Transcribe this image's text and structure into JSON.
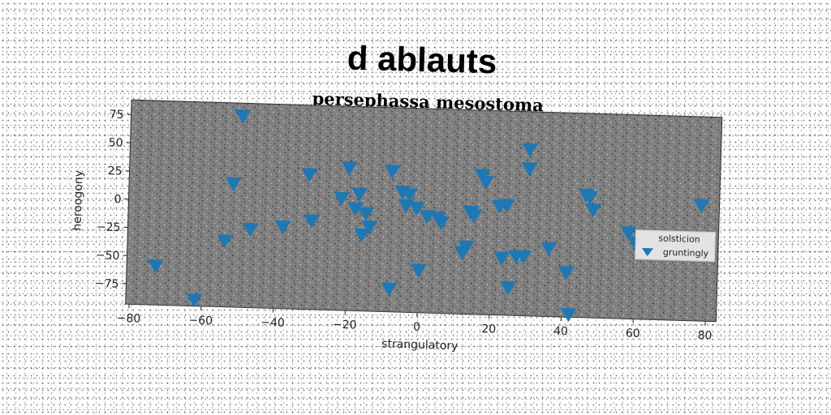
{
  "chart_data": {
    "type": "scatter",
    "title": "d ablauts",
    "subtitle": "persephassa mesostoma",
    "xlabel": "strangulatory",
    "ylabel": "heroogony",
    "xlim": [
      -81,
      83
    ],
    "ylim": [
      -93,
      88
    ],
    "xticks": [
      -80,
      -60,
      -40,
      -20,
      0,
      20,
      40,
      60,
      80
    ],
    "yticks": [
      -75,
      -50,
      -25,
      0,
      25,
      50,
      75
    ],
    "grid": false,
    "legend_position": "right",
    "legend": [
      {
        "label": "solsticion",
        "marker": "none"
      },
      {
        "label": "gruntingly",
        "marker": "triangle-down"
      }
    ],
    "series": [
      {
        "name": "gruntingly",
        "marker": "triangle-down",
        "color": "#1f77b4",
        "points": [
          [
            -50,
            77
          ],
          [
            -73,
            -58
          ],
          [
            -62,
            -87
          ],
          [
            -52,
            17
          ],
          [
            -54,
            -34
          ],
          [
            -47,
            -23
          ],
          [
            -38,
            -20
          ],
          [
            -31,
            27
          ],
          [
            -30,
            -14
          ],
          [
            -20,
            34
          ],
          [
            -22,
            7
          ],
          [
            -17,
            11
          ],
          [
            -18,
            -2
          ],
          [
            -15,
            -6
          ],
          [
            -14,
            -18
          ],
          [
            -16,
            -25
          ],
          [
            -8,
            32
          ],
          [
            -5,
            14
          ],
          [
            -3,
            12
          ],
          [
            -4,
            2
          ],
          [
            -1,
            0
          ],
          [
            2,
            -7
          ],
          [
            5,
            -8
          ],
          [
            6,
            -12
          ],
          [
            -8,
            -72
          ],
          [
            0,
            -55
          ],
          [
            12,
            -38
          ],
          [
            13,
            -33
          ],
          [
            14,
            -2
          ],
          [
            15,
            -5
          ],
          [
            17,
            31
          ],
          [
            18,
            25
          ],
          [
            22,
            4
          ],
          [
            24,
            5
          ],
          [
            23,
            -42
          ],
          [
            27,
            -40
          ],
          [
            29,
            -40
          ],
          [
            25,
            -68
          ],
          [
            30,
            55
          ],
          [
            30,
            38
          ],
          [
            36,
            -32
          ],
          [
            41,
            -53
          ],
          [
            42,
            -90
          ],
          [
            46,
            16
          ],
          [
            47,
            14
          ],
          [
            48,
            3
          ],
          [
            58,
            -16
          ],
          [
            60,
            -25
          ],
          [
            78,
            10
          ]
        ]
      }
    ],
    "colors": {
      "plot_background": "#808080",
      "marker": "#1f77b4",
      "legend_background": "#ececec"
    }
  }
}
